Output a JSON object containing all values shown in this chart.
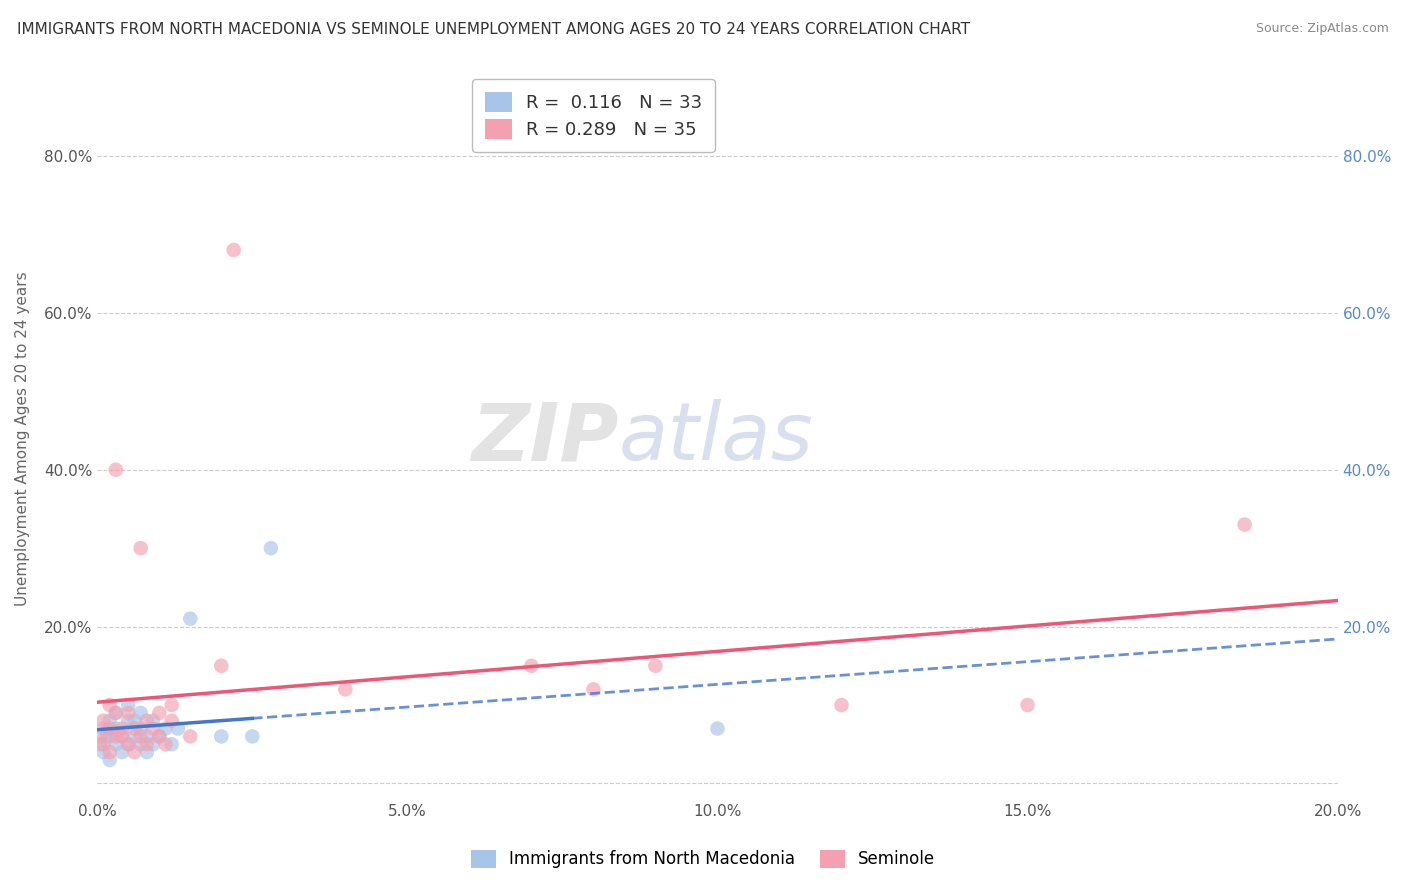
{
  "title": "IMMIGRANTS FROM NORTH MACEDONIA VS SEMINOLE UNEMPLOYMENT AMONG AGES 20 TO 24 YEARS CORRELATION CHART",
  "source": "Source: ZipAtlas.com",
  "ylabel": "Unemployment Among Ages 20 to 24 years",
  "xlabel": "",
  "watermark_left": "ZIP",
  "watermark_right": "atlas",
  "xlim": [
    0.0,
    0.2
  ],
  "ylim": [
    -0.02,
    0.9
  ],
  "xticks": [
    0.0,
    0.05,
    0.1,
    0.15,
    0.2
  ],
  "xticklabels": [
    "0.0%",
    "5.0%",
    "10.0%",
    "15.0%",
    "20.0%"
  ],
  "yticks": [
    0.0,
    0.2,
    0.4,
    0.6,
    0.8
  ],
  "yticklabels_left": [
    "",
    "20.0%",
    "40.0%",
    "60.0%",
    "80.0%"
  ],
  "yticklabels_right": [
    "",
    "20.0%",
    "40.0%",
    "60.0%",
    "80.0%"
  ],
  "blue_R": 0.116,
  "blue_N": 33,
  "pink_R": 0.289,
  "pink_N": 35,
  "blue_color": "#A8C4E8",
  "pink_color": "#F4A0B0",
  "blue_line_color": "#4477CC",
  "pink_line_color": "#EE5577",
  "legend_label_blue": "Immigrants from North Macedonia",
  "legend_label_pink": "Seminole",
  "blue_scatter_x": [
    0.0005,
    0.001,
    0.001,
    0.0015,
    0.002,
    0.002,
    0.002,
    0.003,
    0.003,
    0.003,
    0.004,
    0.004,
    0.005,
    0.005,
    0.005,
    0.006,
    0.006,
    0.007,
    0.007,
    0.007,
    0.008,
    0.008,
    0.009,
    0.009,
    0.01,
    0.011,
    0.012,
    0.013,
    0.015,
    0.02,
    0.025,
    0.028,
    0.1
  ],
  "blue_scatter_y": [
    0.05,
    0.04,
    0.07,
    0.06,
    0.03,
    0.08,
    0.06,
    0.05,
    0.09,
    0.07,
    0.04,
    0.06,
    0.05,
    0.08,
    0.1,
    0.06,
    0.08,
    0.05,
    0.07,
    0.09,
    0.04,
    0.06,
    0.05,
    0.08,
    0.06,
    0.07,
    0.05,
    0.07,
    0.21,
    0.06,
    0.06,
    0.3,
    0.07
  ],
  "pink_scatter_x": [
    0.0005,
    0.001,
    0.001,
    0.002,
    0.002,
    0.002,
    0.003,
    0.003,
    0.003,
    0.004,
    0.004,
    0.005,
    0.005,
    0.006,
    0.006,
    0.007,
    0.007,
    0.008,
    0.008,
    0.009,
    0.01,
    0.01,
    0.011,
    0.012,
    0.012,
    0.015,
    0.02,
    0.022,
    0.04,
    0.07,
    0.08,
    0.09,
    0.12,
    0.15,
    0.185
  ],
  "pink_scatter_y": [
    0.06,
    0.05,
    0.08,
    0.04,
    0.07,
    0.1,
    0.06,
    0.4,
    0.09,
    0.07,
    0.06,
    0.05,
    0.09,
    0.07,
    0.04,
    0.06,
    0.3,
    0.05,
    0.08,
    0.07,
    0.06,
    0.09,
    0.05,
    0.08,
    0.1,
    0.06,
    0.15,
    0.68,
    0.12,
    0.15,
    0.12,
    0.15,
    0.1,
    0.1,
    0.33
  ],
  "background_color": "#FFFFFF",
  "grid_color": "#CCCCCC",
  "title_fontsize": 11,
  "axis_label_fontsize": 11,
  "tick_fontsize": 11,
  "legend_fontsize": 13
}
